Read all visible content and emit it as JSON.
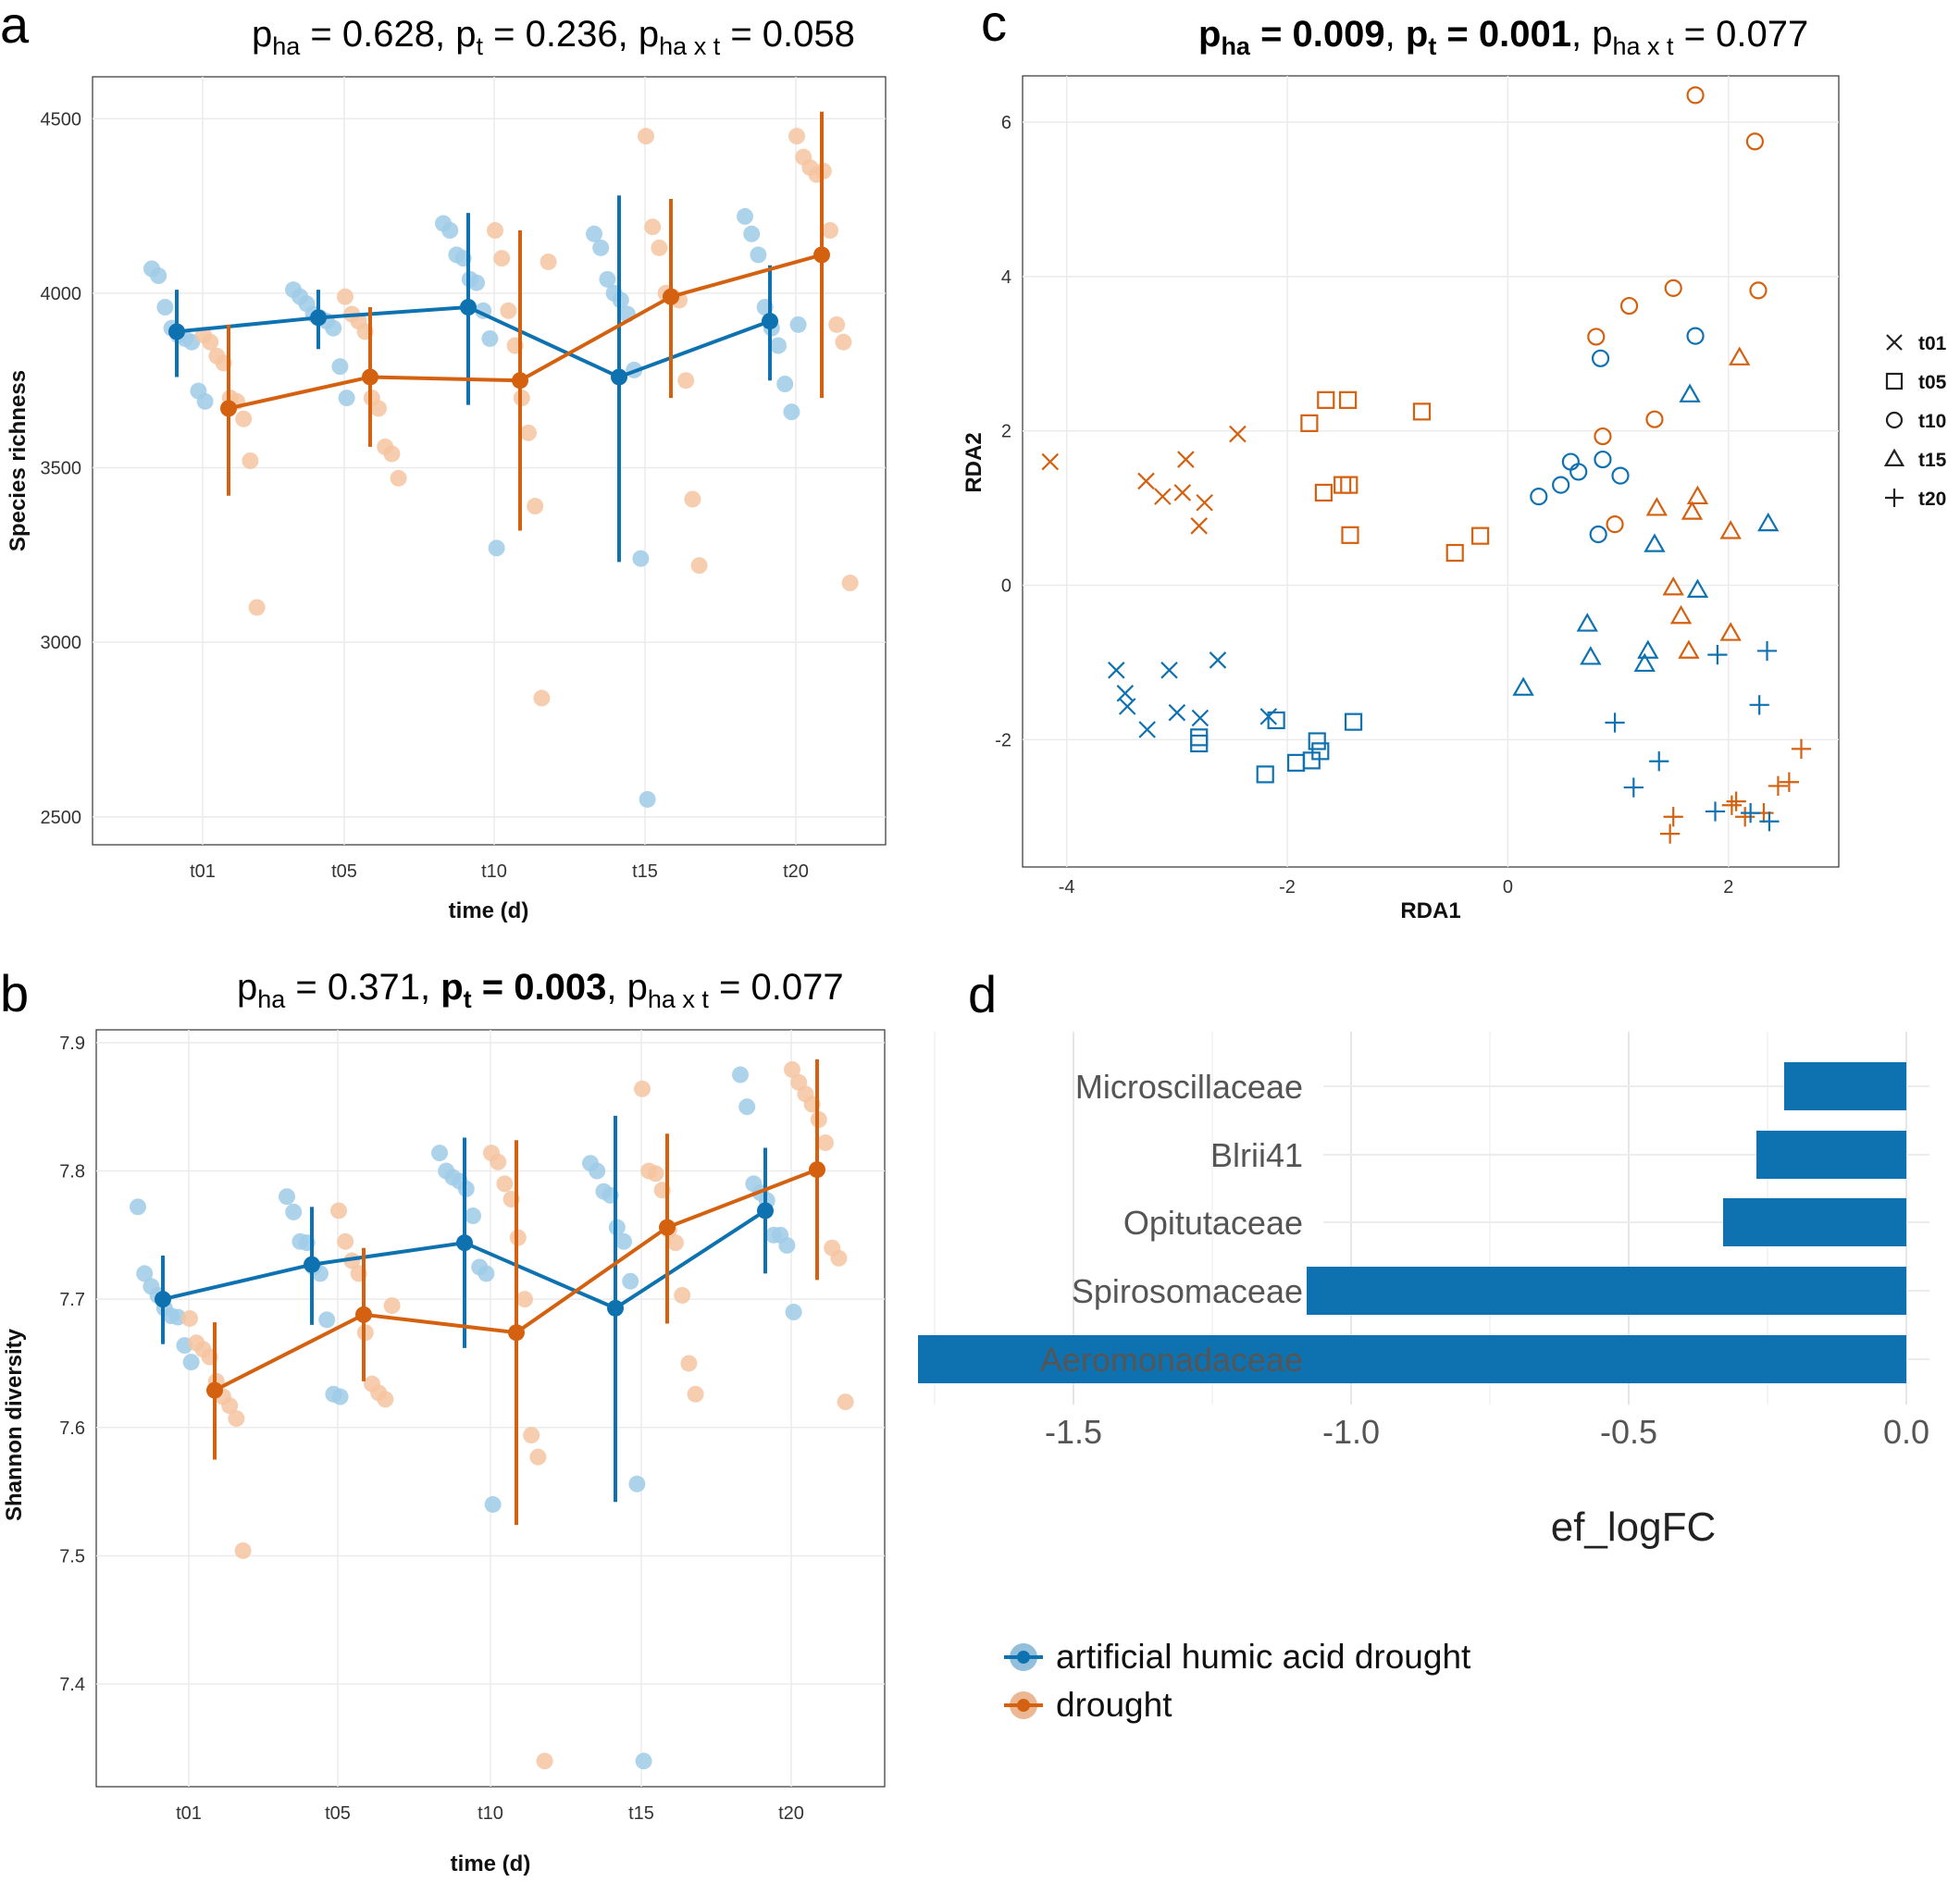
{
  "colors": {
    "ha": "#0f72b0",
    "drought": "#d4610f",
    "ha_light": "#9fcbe8",
    "drought_light": "#f6c4a1"
  },
  "panel_a": {
    "letter": "a",
    "title": {
      "p1": "p",
      "s1": "ha",
      "v1": " = 0.628, ",
      "p2": "p",
      "s2": "t",
      "v2": " = 0.236, ",
      "p3": "p",
      "s3": "ha x t",
      "v3": " = 0.058"
    }
  },
  "panel_b": {
    "letter": "b",
    "title": {
      "p1": "p",
      "s1": "ha",
      "v1": " = 0.371, ",
      "p2": "p",
      "s2": "t",
      "v2": " = 0.003",
      "c2": ", ",
      "p3": "p",
      "s3": "ha x t",
      "v3": " = 0.077"
    }
  },
  "panel_c": {
    "letter": "c",
    "title": {
      "p1": "p",
      "s1": "ha",
      "v1": " = 0.009",
      "c1": ", ",
      "p2": "p",
      "s2": "t",
      "v2": " = 0.001",
      "c2": ", ",
      "p3": "p",
      "s3": "ha x t",
      "v3": " = 0.077"
    }
  },
  "panel_d": {
    "letter": "d"
  },
  "legend": {
    "ha": "artificial humic acid drought",
    "drought": "drought"
  },
  "chart_data": [
    {
      "type": "line",
      "panel": "a",
      "xlabel": "time (d)",
      "ylabel": "Species richness",
      "categories": [
        "t01",
        "t05",
        "t10",
        "t15",
        "t20"
      ],
      "yticks": [
        2500,
        3000,
        3500,
        4000,
        4500
      ],
      "ylim": [
        2420,
        4620
      ],
      "grid": true,
      "series": [
        {
          "name": "artificial humic acid drought",
          "key": "ha",
          "mean": [
            3890,
            3930,
            3960,
            3760,
            3920
          ],
          "lower": [
            3760,
            3840,
            3680,
            3230,
            3750
          ],
          "upper": [
            4010,
            4010,
            4230,
            4280,
            4080
          ],
          "points": [
            [
              4070,
              4050,
              3960,
              3900,
              3880,
              3870,
              3860,
              3720,
              3690
            ],
            [
              4010,
              3990,
              3970,
              3940,
              3930,
              3920,
              3900,
              3790,
              3700
            ],
            [
              4200,
              4180,
              4110,
              4100,
              4040,
              4030,
              3950,
              3870,
              3270
            ],
            [
              4170,
              4130,
              4040,
              4000,
              3980,
              3940,
              3780,
              3240,
              2550
            ],
            [
              4220,
              4170,
              4110,
              3960,
              3900,
              3850,
              3740,
              3660,
              3910
            ]
          ]
        },
        {
          "name": "drought",
          "key": "drought",
          "mean": [
            3670,
            3760,
            3750,
            3990,
            4110
          ],
          "lower": [
            3420,
            3560,
            3320,
            3700,
            3700
          ],
          "upper": [
            3910,
            3960,
            4180,
            4270,
            4520
          ],
          "points": [
            [
              3880,
              3860,
              3820,
              3800,
              3700,
              3690,
              3640,
              3520,
              3100
            ],
            [
              3990,
              3940,
              3920,
              3890,
              3700,
              3670,
              3560,
              3540,
              3470
            ],
            [
              4180,
              4100,
              3950,
              3850,
              3700,
              3600,
              3390,
              2840,
              4090
            ],
            [
              4450,
              4190,
              4130,
              4000,
              3990,
              3980,
              3750,
              3410,
              3220
            ],
            [
              4450,
              4390,
              4360,
              4340,
              4350,
              4180,
              3910,
              3860,
              3170
            ]
          ]
        }
      ]
    },
    {
      "type": "line",
      "panel": "b",
      "xlabel": "time (d)",
      "ylabel": "Shannon diversity",
      "categories": [
        "t01",
        "t05",
        "t10",
        "t15",
        "t20"
      ],
      "yticks": [
        7.4,
        7.5,
        7.6,
        7.7,
        7.8,
        7.9
      ],
      "ylim": [
        7.32,
        7.91
      ],
      "grid": true,
      "series": [
        {
          "name": "artificial humic acid drought",
          "key": "ha",
          "mean": [
            7.7,
            7.727,
            7.744,
            7.693,
            7.769
          ],
          "lower": [
            7.665,
            7.68,
            7.662,
            7.542,
            7.72
          ],
          "upper": [
            7.734,
            7.772,
            7.826,
            7.843,
            7.818
          ],
          "points": [
            [
              7.772,
              7.72,
              7.71,
              7.703,
              7.693,
              7.687,
              7.686,
              7.664,
              7.651
            ],
            [
              7.78,
              7.768,
              7.745,
              7.744,
              7.725,
              7.72,
              7.684,
              7.626,
              7.624
            ],
            [
              7.814,
              7.8,
              7.795,
              7.792,
              7.786,
              7.765,
              7.725,
              7.72,
              7.54
            ],
            [
              7.806,
              7.8,
              7.784,
              7.781,
              7.756,
              7.745,
              7.714,
              7.556,
              7.34
            ],
            [
              7.875,
              7.85,
              7.79,
              7.783,
              7.777,
              7.75,
              7.75,
              7.742,
              7.69
            ]
          ]
        },
        {
          "name": "drought",
          "key": "drought",
          "mean": [
            7.629,
            7.688,
            7.674,
            7.756,
            7.801
          ],
          "lower": [
            7.575,
            7.636,
            7.524,
            7.681,
            7.715
          ],
          "upper": [
            7.682,
            7.74,
            7.824,
            7.829,
            7.887
          ],
          "points": [
            [
              7.685,
              7.666,
              7.661,
              7.655,
              7.636,
              7.624,
              7.617,
              7.607,
              7.504
            ],
            [
              7.769,
              7.745,
              7.73,
              7.72,
              7.674,
              7.634,
              7.627,
              7.622,
              7.695
            ],
            [
              7.814,
              7.807,
              7.79,
              7.778,
              7.748,
              7.7,
              7.594,
              7.577,
              7.34
            ],
            [
              7.864,
              7.8,
              7.798,
              7.785,
              7.754,
              7.744,
              7.703,
              7.65,
              7.626
            ],
            [
              7.879,
              7.869,
              7.86,
              7.852,
              7.84,
              7.822,
              7.74,
              7.732,
              7.62
            ]
          ]
        }
      ]
    },
    {
      "type": "scatter",
      "panel": "c",
      "xlabel": "RDA1",
      "ylabel": "RDA2",
      "xticks": [
        -4,
        -2,
        0,
        2
      ],
      "yticks": [
        -2,
        0,
        2,
        4,
        6
      ],
      "xlim": [
        -4.4,
        3.0
      ],
      "ylim": [
        -3.65,
        6.6
      ],
      "grid": true,
      "legend_position": "right",
      "shapes": [
        {
          "label": "t01",
          "shape": "x"
        },
        {
          "label": "t05",
          "shape": "square"
        },
        {
          "label": "t10",
          "shape": "circle"
        },
        {
          "label": "t15",
          "shape": "triangle"
        },
        {
          "label": "t20",
          "shape": "plus"
        }
      ],
      "series": [
        {
          "name": "drought t01",
          "key": "drought",
          "shape": "x",
          "points": [
            [
              -4.15,
              1.6
            ],
            [
              -3.28,
              1.35
            ],
            [
              -3.13,
              1.15
            ],
            [
              -2.95,
              1.2
            ],
            [
              -2.92,
              1.63
            ],
            [
              -2.75,
              1.07
            ],
            [
              -2.8,
              0.77
            ],
            [
              -2.45,
              1.96
            ]
          ]
        },
        {
          "name": "drought t05",
          "key": "drought",
          "shape": "square",
          "points": [
            [
              -1.8,
              2.1
            ],
            [
              -1.65,
              2.4
            ],
            [
              -1.45,
              2.4
            ],
            [
              -0.78,
              2.25
            ],
            [
              -1.67,
              1.2
            ],
            [
              -1.5,
              1.3
            ],
            [
              -1.44,
              1.3
            ],
            [
              -1.43,
              0.65
            ],
            [
              -0.48,
              0.42
            ],
            [
              -0.25,
              0.64
            ]
          ]
        },
        {
          "name": "drought t10",
          "key": "drought",
          "shape": "circle",
          "points": [
            [
              1.7,
              6.35
            ],
            [
              2.24,
              5.75
            ],
            [
              1.5,
              3.85
            ],
            [
              2.27,
              3.82
            ],
            [
              0.8,
              3.22
            ],
            [
              1.1,
              3.62
            ],
            [
              0.86,
              1.93
            ],
            [
              1.33,
              2.15
            ],
            [
              0.97,
              0.79
            ]
          ]
        },
        {
          "name": "drought t15",
          "key": "drought",
          "shape": "triangle",
          "points": [
            [
              2.1,
              2.95
            ],
            [
              1.35,
              1.0
            ],
            [
              1.72,
              1.15
            ],
            [
              1.67,
              0.95
            ],
            [
              2.02,
              0.7
            ],
            [
              1.5,
              -0.03
            ],
            [
              1.57,
              -0.4
            ],
            [
              1.64,
              -0.85
            ],
            [
              2.02,
              -0.62
            ]
          ]
        },
        {
          "name": "drought t20",
          "key": "drought",
          "shape": "plus",
          "points": [
            [
              2.66,
              -2.12
            ],
            [
              2.55,
              -2.55
            ],
            [
              2.45,
              -2.6
            ],
            [
              2.32,
              -2.95
            ],
            [
              2.07,
              -2.8
            ],
            [
              2.15,
              -3.0
            ],
            [
              2.03,
              -2.85
            ],
            [
              1.5,
              -3.0
            ],
            [
              1.47,
              -3.22
            ]
          ]
        },
        {
          "name": "artificial humic acid drought t01",
          "key": "ha",
          "shape": "x",
          "points": [
            [
              -3.55,
              -1.1
            ],
            [
              -3.47,
              -1.4
            ],
            [
              -3.45,
              -1.57
            ],
            [
              -3.07,
              -1.1
            ],
            [
              -2.63,
              -0.97
            ],
            [
              -3.0,
              -1.65
            ],
            [
              -3.27,
              -1.87
            ],
            [
              -2.79,
              -1.72
            ],
            [
              -2.17,
              -1.7
            ]
          ]
        },
        {
          "name": "artificial humic acid drought t05",
          "key": "ha",
          "shape": "square",
          "points": [
            [
              -2.1,
              -1.75
            ],
            [
              -2.8,
              -1.97
            ],
            [
              -2.8,
              -2.05
            ],
            [
              -1.73,
              -2.02
            ],
            [
              -1.78,
              -2.27
            ],
            [
              -1.7,
              -2.15
            ],
            [
              -1.4,
              -1.77
            ],
            [
              -1.92,
              -2.3
            ],
            [
              -2.2,
              -2.45
            ]
          ]
        },
        {
          "name": "artificial humic acid drought t10",
          "key": "ha",
          "shape": "circle",
          "points": [
            [
              1.7,
              3.23
            ],
            [
              0.84,
              2.94
            ],
            [
              0.28,
              1.15
            ],
            [
              0.48,
              1.3
            ],
            [
              0.57,
              1.6
            ],
            [
              0.64,
              1.47
            ],
            [
              0.86,
              1.63
            ],
            [
              1.02,
              1.42
            ],
            [
              0.82,
              0.66
            ]
          ]
        },
        {
          "name": "artificial humic acid drought t15",
          "key": "ha",
          "shape": "triangle",
          "points": [
            [
              1.65,
              2.47
            ],
            [
              1.33,
              0.53
            ],
            [
              2.36,
              0.8
            ],
            [
              1.72,
              -0.06
            ],
            [
              0.72,
              -0.5
            ],
            [
              0.75,
              -0.93
            ],
            [
              1.27,
              -0.85
            ],
            [
              1.24,
              -1.02
            ],
            [
              0.14,
              -1.33
            ]
          ]
        },
        {
          "name": "artificial humic acid drought t20",
          "key": "ha",
          "shape": "plus",
          "points": [
            [
              2.35,
              -0.85
            ],
            [
              1.9,
              -0.9
            ],
            [
              2.28,
              -1.55
            ],
            [
              0.97,
              -1.78
            ],
            [
              1.37,
              -2.28
            ],
            [
              1.14,
              -2.62
            ],
            [
              1.88,
              -2.93
            ],
            [
              2.2,
              -2.95
            ],
            [
              2.37,
              -3.06
            ]
          ]
        }
      ]
    },
    {
      "type": "bar",
      "panel": "d",
      "orientation": "horizontal",
      "categories": [
        "Microscillaceae",
        "Blrii41",
        "Opitutaceae",
        "Spirosomaceae",
        "Aeromonadaceae"
      ],
      "values": [
        -0.22,
        -0.27,
        -0.33,
        -1.08,
        -1.78
      ],
      "xlabel": "ef_logFC",
      "xticks": [
        -1.5,
        -1.0,
        -0.5,
        0.0
      ],
      "xtick_labels": [
        "-1.5",
        "-1.0",
        "-0.5",
        "0.0"
      ],
      "xlim": [
        -1.8,
        0.0
      ],
      "grid": true
    }
  ]
}
